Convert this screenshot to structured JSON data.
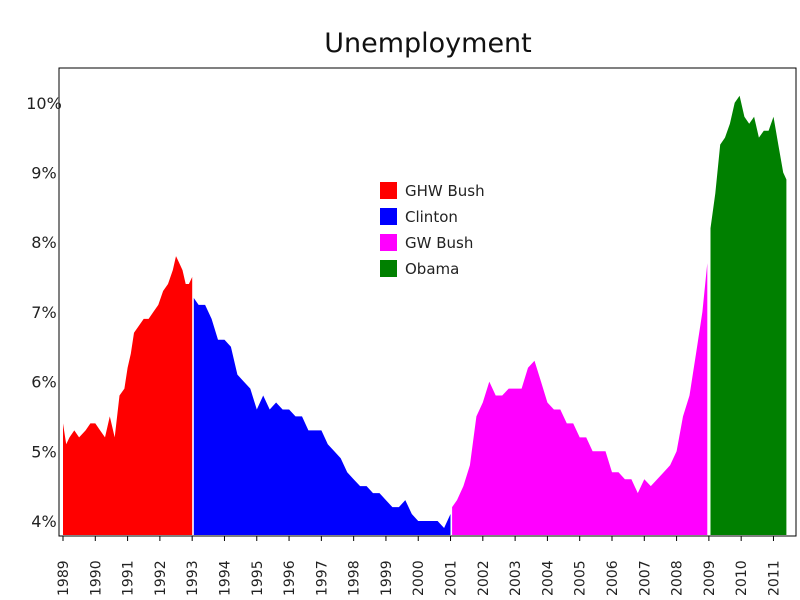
{
  "chart_data": {
    "type": "area",
    "title": "Unemployment",
    "xlabel": "",
    "ylabel": "",
    "ylim": [
      3.8,
      10.7
    ],
    "xlim": [
      1989.0,
      2011.45
    ],
    "grid": false,
    "legend_position": "center",
    "y_ticks": [
      "4%",
      "5%",
      "6%",
      "7%",
      "8%",
      "9%",
      "10%"
    ],
    "y_tick_values": [
      4,
      5,
      6,
      7,
      8,
      9,
      10
    ],
    "x_ticks": [
      "1989",
      "1990",
      "1991",
      "1992",
      "1993",
      "1994",
      "1995",
      "1996",
      "1997",
      "1998",
      "1999",
      "2000",
      "2001",
      "2002",
      "2003",
      "2004",
      "2005",
      "2006",
      "2007",
      "2008",
      "2009",
      "2010",
      "2011"
    ],
    "x_tick_values": [
      1989,
      1990,
      1991,
      1992,
      1993,
      1994,
      1995,
      1996,
      1997,
      1998,
      1999,
      2000,
      2001,
      2002,
      2003,
      2004,
      2005,
      2006,
      2007,
      2008,
      2009,
      2010,
      2011
    ],
    "series": [
      {
        "name": "GHW Bush",
        "color": "#ff0000",
        "x": [
          1989.0,
          1989.1,
          1989.2,
          1989.35,
          1989.5,
          1989.7,
          1989.85,
          1990.0,
          1990.15,
          1990.3,
          1990.45,
          1990.6,
          1990.75,
          1990.9,
          1991.0,
          1991.1,
          1991.2,
          1991.35,
          1991.5,
          1991.65,
          1991.8,
          1991.95,
          1992.1,
          1992.25,
          1992.4,
          1992.5,
          1992.6,
          1992.7,
          1992.8,
          1992.9,
          1993.0
        ],
        "values": [
          5.4,
          5.1,
          5.2,
          5.3,
          5.2,
          5.3,
          5.4,
          5.4,
          5.3,
          5.2,
          5.5,
          5.2,
          5.8,
          5.9,
          6.2,
          6.4,
          6.7,
          6.8,
          6.9,
          6.9,
          7.0,
          7.1,
          7.3,
          7.4,
          7.6,
          7.8,
          7.7,
          7.6,
          7.4,
          7.4,
          7.5
        ]
      },
      {
        "name": "Clinton",
        "color": "#0000ff",
        "x": [
          1993.05,
          1993.2,
          1993.4,
          1993.6,
          1993.8,
          1994.0,
          1994.2,
          1994.4,
          1994.6,
          1994.8,
          1995.0,
          1995.2,
          1995.4,
          1995.6,
          1995.8,
          1996.0,
          1996.2,
          1996.4,
          1996.6,
          1996.8,
          1997.0,
          1997.2,
          1997.4,
          1997.6,
          1997.8,
          1998.0,
          1998.2,
          1998.4,
          1998.6,
          1998.8,
          1999.0,
          1999.2,
          1999.4,
          1999.6,
          1999.8,
          2000.0,
          2000.2,
          2000.4,
          2000.6,
          2000.8,
          2001.0
        ],
        "values": [
          7.2,
          7.1,
          7.1,
          6.9,
          6.6,
          6.6,
          6.5,
          6.1,
          6.0,
          5.9,
          5.6,
          5.8,
          5.6,
          5.7,
          5.6,
          5.6,
          5.5,
          5.5,
          5.3,
          5.3,
          5.3,
          5.1,
          5.0,
          4.9,
          4.7,
          4.6,
          4.5,
          4.5,
          4.4,
          4.4,
          4.3,
          4.2,
          4.2,
          4.3,
          4.1,
          4.0,
          4.0,
          4.0,
          4.0,
          3.9,
          4.1
        ]
      },
      {
        "name": "GW Bush",
        "color": "#ff00ff",
        "x": [
          2001.05,
          2001.2,
          2001.4,
          2001.6,
          2001.8,
          2002.0,
          2002.2,
          2002.4,
          2002.6,
          2002.8,
          2003.0,
          2003.2,
          2003.4,
          2003.6,
          2003.8,
          2004.0,
          2004.2,
          2004.4,
          2004.6,
          2004.8,
          2005.0,
          2005.2,
          2005.4,
          2005.6,
          2005.8,
          2006.0,
          2006.2,
          2006.4,
          2006.6,
          2006.8,
          2007.0,
          2007.2,
          2007.4,
          2007.6,
          2007.8,
          2008.0,
          2008.2,
          2008.4,
          2008.6,
          2008.8,
          2008.95
        ],
        "values": [
          4.2,
          4.3,
          4.5,
          4.8,
          5.5,
          5.7,
          6.0,
          5.8,
          5.8,
          5.9,
          5.9,
          5.9,
          6.2,
          6.3,
          6.0,
          5.7,
          5.6,
          5.6,
          5.4,
          5.4,
          5.2,
          5.2,
          5.0,
          5.0,
          5.0,
          4.7,
          4.7,
          4.6,
          4.6,
          4.4,
          4.6,
          4.5,
          4.6,
          4.7,
          4.8,
          5.0,
          5.5,
          5.8,
          6.4,
          7.0,
          7.7
        ]
      },
      {
        "name": "Obama",
        "color": "#008000",
        "x": [
          2009.05,
          2009.2,
          2009.35,
          2009.5,
          2009.65,
          2009.8,
          2009.95,
          2010.1,
          2010.25,
          2010.4,
          2010.55,
          2010.7,
          2010.85,
          2011.0,
          2011.15,
          2011.3,
          2011.4
        ],
        "values": [
          8.2,
          8.7,
          9.4,
          9.5,
          9.7,
          10.0,
          10.1,
          9.8,
          9.7,
          9.8,
          9.5,
          9.6,
          9.6,
          9.8,
          9.4,
          9.0,
          8.9
        ]
      }
    ]
  }
}
